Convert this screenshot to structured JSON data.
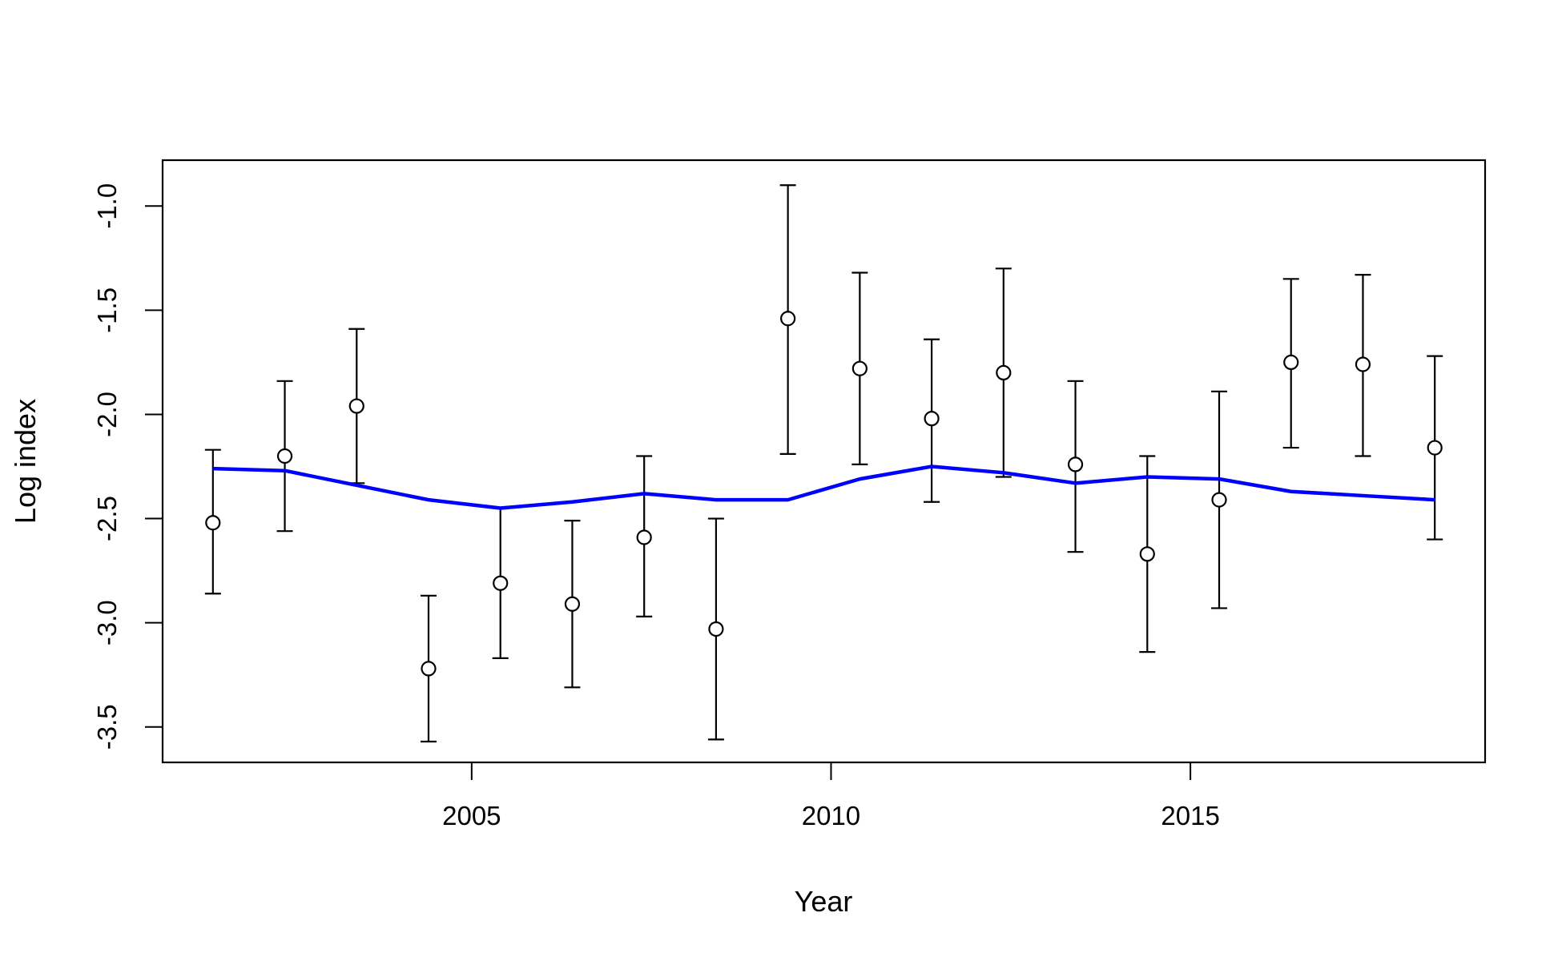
{
  "chart_data": {
    "type": "scatter",
    "title": "",
    "xlabel": "Year",
    "ylabel": "Log index",
    "xlim": [
      2000.7,
      2019.1
    ],
    "ylim": [
      -3.67,
      -0.78
    ],
    "x_ticks": [
      2005,
      2010,
      2015
    ],
    "x_tick_labels": [
      "2005",
      "2010",
      "2015"
    ],
    "y_ticks": [
      -3.5,
      -3.0,
      -2.5,
      -2.0,
      -1.5,
      -1.0
    ],
    "y_tick_labels": [
      "-3.5",
      "-3.0",
      "-2.5",
      "-2.0",
      "-1.5",
      "-1.0"
    ],
    "grid": false,
    "legend": "none",
    "series": [
      {
        "kind": "points-with-error-bars",
        "color": "#000000",
        "x": [
          2001.4,
          2002.4,
          2003.4,
          2004.4,
          2005.4,
          2006.4,
          2007.4,
          2008.4,
          2009.4,
          2010.4,
          2011.4,
          2012.4,
          2013.4,
          2014.4,
          2015.4,
          2016.4,
          2017.4,
          2018.4
        ],
        "y": [
          -2.52,
          -2.2,
          -1.96,
          -3.22,
          -2.81,
          -2.91,
          -2.59,
          -3.03,
          -1.54,
          -1.78,
          -2.02,
          -1.8,
          -2.24,
          -2.67,
          -2.41,
          -1.75,
          -1.76,
          -2.16
        ],
        "lower": [
          -2.86,
          -2.56,
          -2.33,
          -3.57,
          -3.17,
          -3.31,
          -2.97,
          -3.56,
          -2.19,
          -2.24,
          -2.42,
          -2.3,
          -2.66,
          -3.14,
          -2.93,
          -2.16,
          -2.2,
          -2.6
        ],
        "upper": [
          -2.17,
          -1.84,
          -1.59,
          -2.87,
          -2.45,
          -2.51,
          -2.2,
          -2.5,
          -0.9,
          -1.32,
          -1.64,
          -1.3,
          -1.84,
          -2.2,
          -1.89,
          -1.35,
          -1.33,
          -1.72
        ]
      },
      {
        "kind": "line",
        "color": "#0000ff",
        "x": [
          2001.4,
          2002.4,
          2003.4,
          2004.4,
          2005.4,
          2006.4,
          2007.4,
          2008.4,
          2009.4,
          2010.4,
          2011.4,
          2012.4,
          2013.4,
          2014.4,
          2015.4,
          2016.4,
          2017.4,
          2018.4
        ],
        "y": [
          -2.26,
          -2.27,
          -2.34,
          -2.41,
          -2.45,
          -2.42,
          -2.38,
          -2.41,
          -2.41,
          -2.31,
          -2.25,
          -2.28,
          -2.33,
          -2.3,
          -2.31,
          -2.37,
          -2.39,
          -2.41
        ]
      }
    ]
  }
}
